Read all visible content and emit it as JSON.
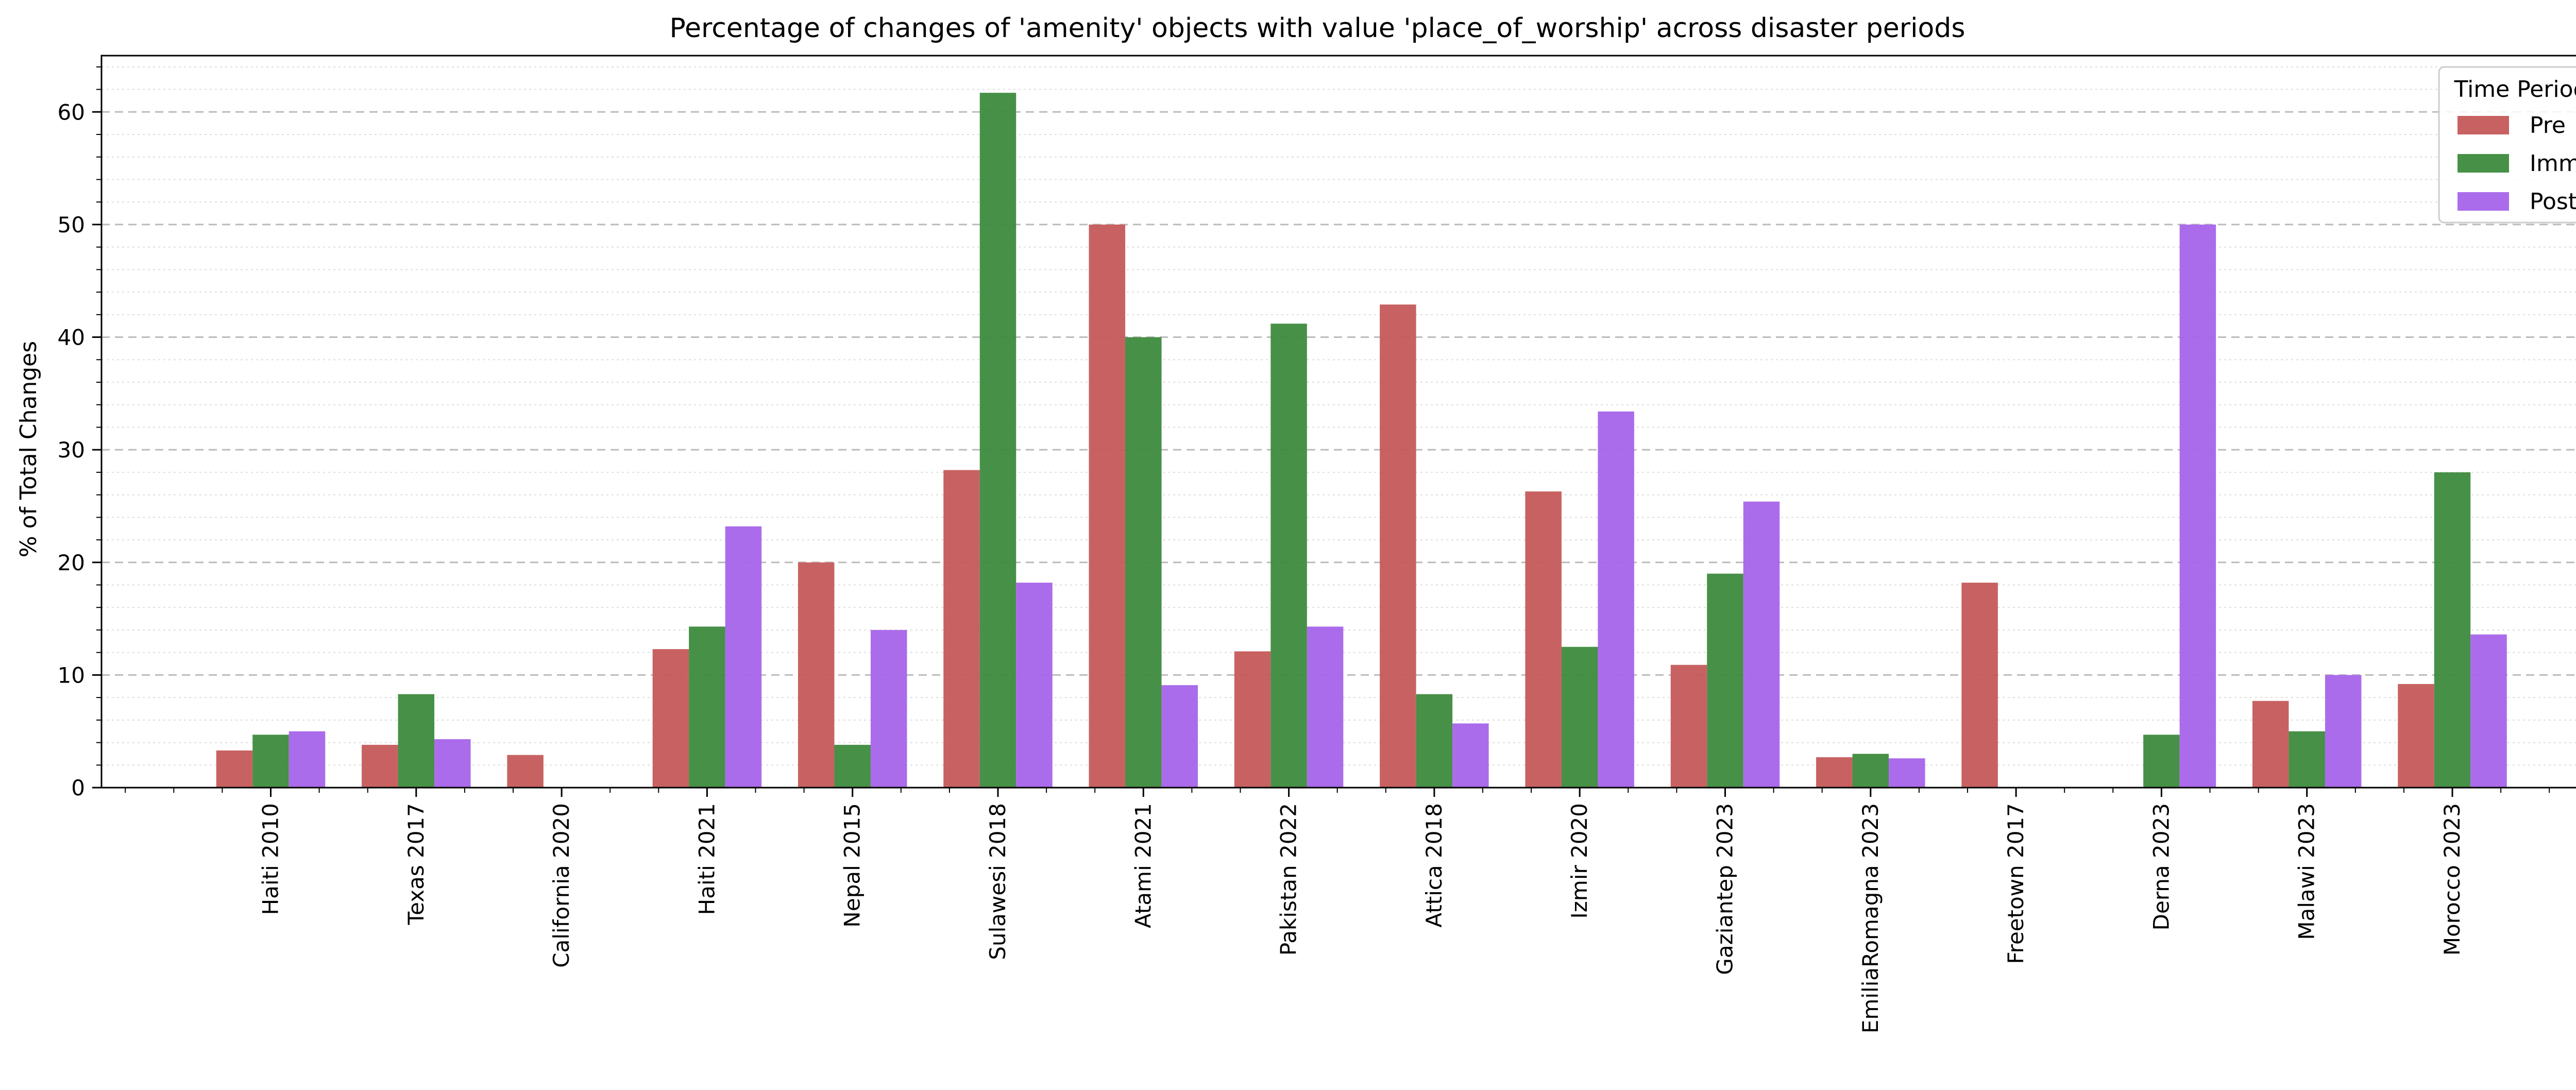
{
  "chart_data": {
    "type": "bar",
    "title": "Percentage of changes of 'amenity' objects with value 'place_of_worship' across disaster periods",
    "xlabel": "",
    "ylabel": "% of Total Changes",
    "ylim": [
      0,
      65
    ],
    "yticks": [
      0,
      10,
      20,
      30,
      40,
      50,
      60
    ],
    "grid": true,
    "legend": {
      "title": "Time Period",
      "placement": "top-right"
    },
    "categories": [
      "Haiti 2010",
      "Texas 2017",
      "California 2020",
      "Haiti 2021",
      "Nepal 2015",
      "Sulawesi 2018",
      "Atami 2021",
      "Pakistan 2022",
      "Attica 2018",
      "Izmir 2020",
      "Gaziantep 2023",
      "EmiliaRomagna 2023",
      "Freetown 2017",
      "Derna 2023",
      "Malawi 2023",
      "Morocco 2023"
    ],
    "series": [
      {
        "name": "Pre",
        "color": "#c55a5a",
        "values": [
          3.3,
          3.8,
          2.9,
          12.3,
          20.0,
          28.2,
          50.0,
          12.1,
          42.9,
          26.3,
          10.9,
          2.7,
          18.2,
          0,
          7.7,
          9.2
        ]
      },
      {
        "name": "Imm",
        "color": "#3d8a3d",
        "values": [
          4.7,
          8.3,
          0,
          14.3,
          3.8,
          61.7,
          40.0,
          41.2,
          8.3,
          12.5,
          19.0,
          3.0,
          0,
          4.7,
          5.0,
          28.0
        ]
      },
      {
        "name": "Post",
        "color": "#a664ea",
        "values": [
          5.0,
          4.3,
          0,
          23.2,
          14.0,
          18.2,
          9.1,
          14.3,
          5.7,
          33.4,
          25.4,
          2.6,
          0,
          50.0,
          10.0,
          13.6
        ]
      }
    ]
  }
}
